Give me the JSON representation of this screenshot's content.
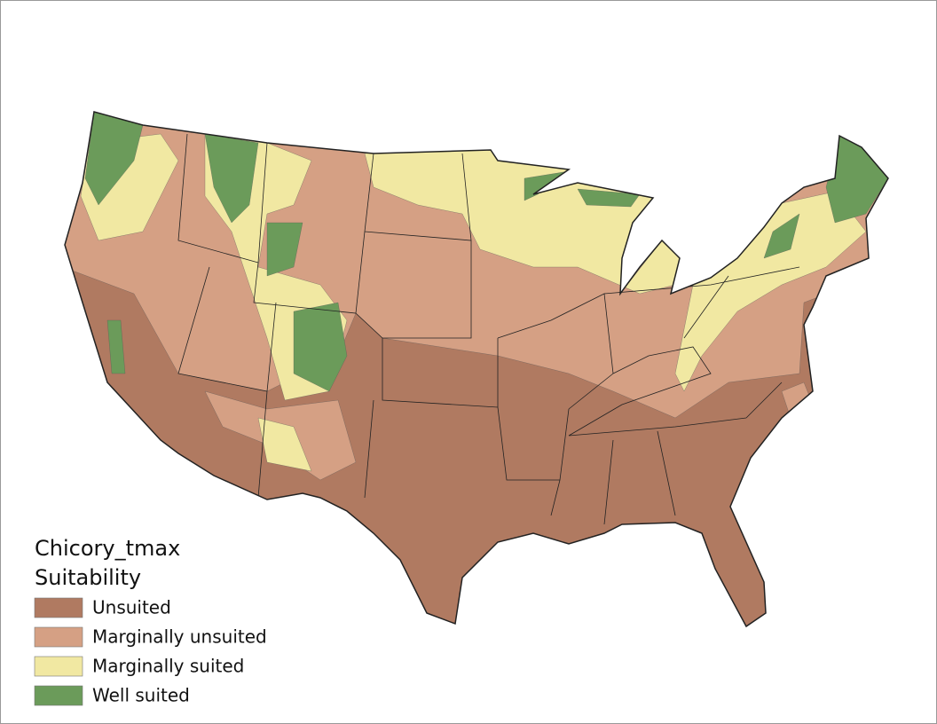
{
  "legend": {
    "title_lines": [
      "Chicory_tmax",
      "Suitability"
    ],
    "items": [
      {
        "label": "Unsuited",
        "color": "#b07a61"
      },
      {
        "label": "Marginally unsuited",
        "color": "#d5a084"
      },
      {
        "label": "Marginally suited",
        "color": "#f1e8a2"
      },
      {
        "label": "Well suited",
        "color": "#6b9b5a"
      }
    ]
  }
}
